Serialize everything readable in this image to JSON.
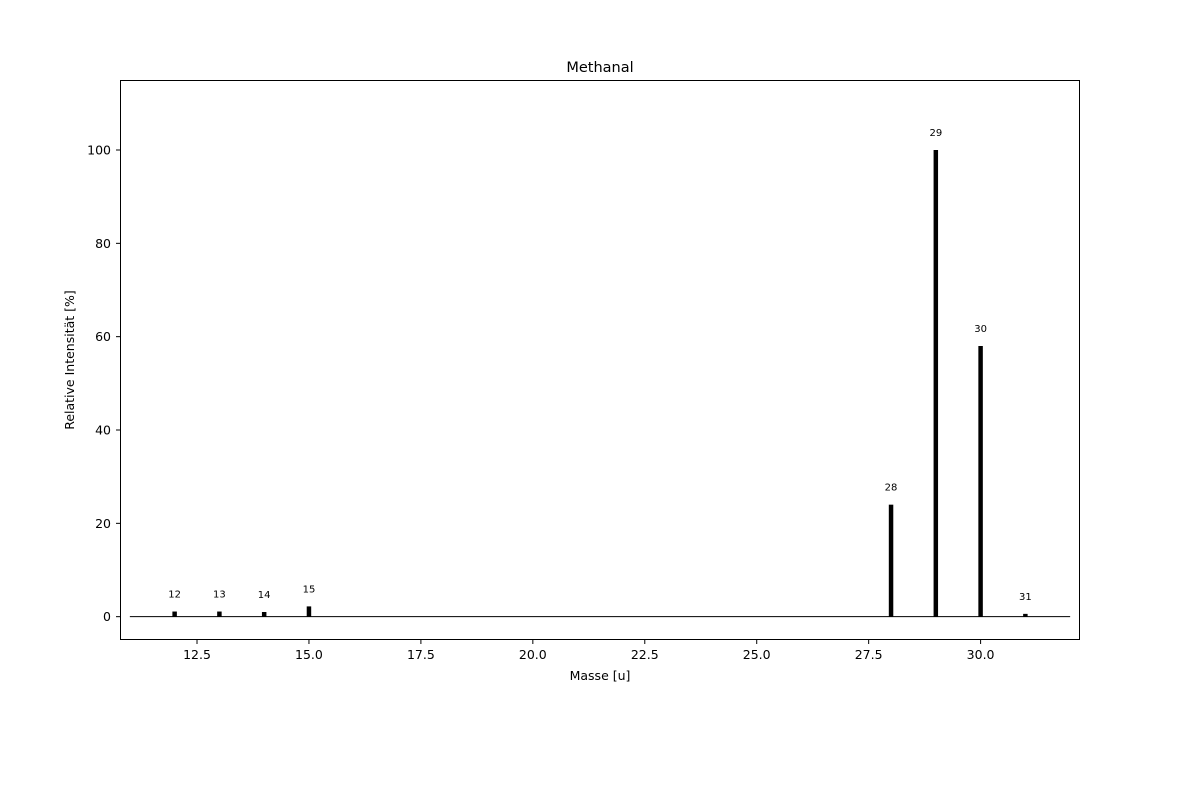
{
  "chart_data": {
    "type": "bar",
    "title": "Methanal",
    "xlabel": "Masse [u]",
    "ylabel": "Relative Intensität [%]",
    "xlim": [
      10.78,
      32.22
    ],
    "ylim": [
      -5,
      115
    ],
    "xticks": [
      "12.5",
      "15.0",
      "17.5",
      "20.0",
      "22.5",
      "25.0",
      "27.5",
      "30.0"
    ],
    "yticks": [
      "0",
      "20",
      "40",
      "60",
      "80",
      "100"
    ],
    "baseline": {
      "y": 0,
      "x_from": 11,
      "x_to": 32
    },
    "bar_color": "#000000",
    "grid": false,
    "x": [
      12,
      13,
      14,
      15,
      28,
      29,
      30,
      31
    ],
    "values": [
      1.1,
      1.1,
      1.0,
      2.2,
      24,
      100,
      58,
      0.6
    ],
    "data_labels": [
      "12",
      "13",
      "14",
      "15",
      "28",
      "29",
      "30",
      "31"
    ]
  }
}
